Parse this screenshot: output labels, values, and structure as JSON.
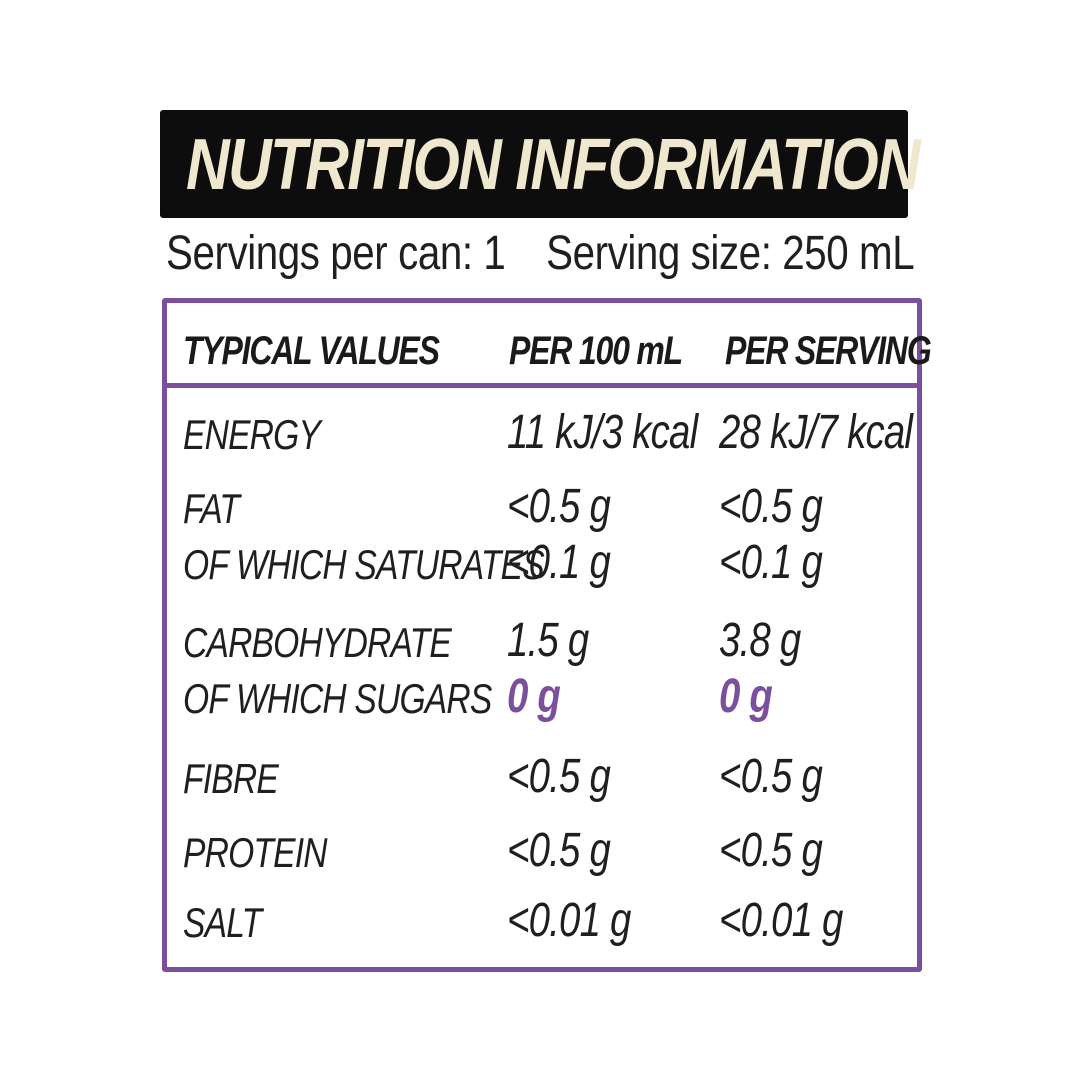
{
  "title": "NUTRITION INFORMATION",
  "servings_per_can": "Servings per can: 1",
  "serving_size": "Serving size: 250 mL",
  "table": {
    "headers": [
      "TYPICAL VALUES",
      "PER 100 mL",
      "PER SERVING"
    ],
    "rows": [
      {
        "label": "ENERGY",
        "per100": "11 kJ/3 kcal",
        "perServing": "28 kJ/7 kcal"
      },
      {
        "label": "FAT",
        "per100": "<0.5 g",
        "perServing": "<0.5 g"
      },
      {
        "label": "OF WHICH SATURATES",
        "per100": "<0.1 g",
        "perServing": "<0.1 g"
      },
      {
        "label": "CARBOHYDRATE",
        "per100": "1.5 g",
        "perServing": "3.8 g"
      },
      {
        "label": "OF WHICH SUGARS",
        "per100": "0 g",
        "perServing": "0 g",
        "highlight": true
      },
      {
        "label": "FIBRE",
        "per100": "<0.5 g",
        "perServing": "<0.5 g"
      },
      {
        "label": "PROTEIN",
        "per100": "<0.5 g",
        "perServing": "<0.5 g"
      },
      {
        "label": "SALT",
        "per100": "<0.01 g",
        "perServing": "<0.01 g"
      }
    ]
  },
  "colors": {
    "banner": "#0d0d0d",
    "title_text": "#efe8cf",
    "accent_purple": "#7b4f9e",
    "text": "#1f1f1f"
  }
}
